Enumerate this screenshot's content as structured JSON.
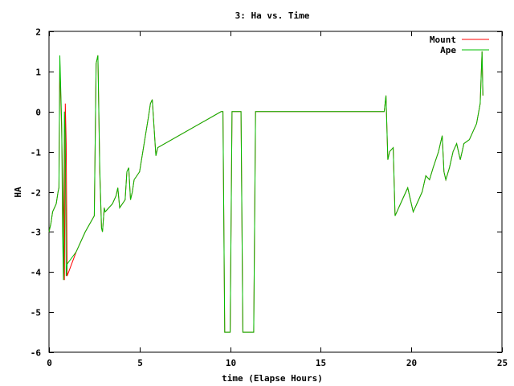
{
  "chart_data": {
    "type": "line",
    "title": "3: Ha vs. Time",
    "xlabel": "time (Elapse Hours)",
    "ylabel": "HA",
    "xlim": [
      0,
      25
    ],
    "ylim": [
      -6,
      2
    ],
    "xticks": [
      0,
      5,
      10,
      15,
      20,
      25
    ],
    "yticks": [
      -6,
      -5,
      -4,
      -3,
      -2,
      -1,
      0,
      1,
      2
    ],
    "grid": false,
    "legend_position": "top-right",
    "series": [
      {
        "name": "Mount",
        "color": "#ff0000",
        "x": [
          0.0,
          0.1,
          0.2,
          0.4,
          0.5,
          0.55,
          0.6,
          0.7,
          0.8,
          0.85,
          0.9,
          0.95,
          1.0,
          1.5,
          2.0,
          2.5,
          2.6,
          2.7,
          2.8,
          2.9,
          2.95,
          3.0,
          3.05,
          3.1,
          3.5,
          3.7,
          3.8,
          3.9,
          4.2,
          4.3,
          4.4,
          4.5,
          4.6,
          4.7,
          5.0,
          5.5,
          5.6,
          5.7,
          5.9,
          6.0,
          9.5,
          9.6,
          9.7,
          10.0,
          10.1,
          10.2,
          10.6,
          10.7,
          10.8,
          11.3,
          11.4,
          11.5,
          18.5,
          18.6,
          18.7,
          18.8,
          19.0,
          19.1,
          19.3,
          19.5,
          19.8,
          20.0,
          20.1,
          20.3,
          20.6,
          20.8,
          21.0,
          21.2,
          21.5,
          21.7,
          21.8,
          21.9,
          22.1,
          22.3,
          22.5,
          22.7,
          22.8,
          22.9,
          23.2,
          23.4,
          23.6,
          23.8,
          23.9,
          23.95
        ],
        "y": [
          -3.0,
          -2.8,
          -2.5,
          -2.3,
          -2.0,
          -1.9,
          1.2,
          -0.5,
          -3.0,
          -4.2,
          0.2,
          -0.8,
          -4.1,
          -3.5,
          -3.0,
          -2.6,
          1.2,
          1.4,
          -1.5,
          -2.9,
          -3.0,
          -2.7,
          -2.4,
          -2.5,
          -2.3,
          -2.1,
          -1.9,
          -2.4,
          -2.2,
          -1.5,
          -1.4,
          -2.2,
          -2.0,
          -1.7,
          -1.5,
          -0.1,
          0.2,
          0.3,
          -1.1,
          -0.9,
          0.0,
          0.0,
          -5.5,
          -5.5,
          0.0,
          0.0,
          0.0,
          -5.5,
          -5.5,
          -5.5,
          0.0,
          0.0,
          0.0,
          0.4,
          -1.2,
          -1.0,
          -0.9,
          -2.6,
          -2.4,
          -2.2,
          -1.9,
          -2.3,
          -2.5,
          -2.3,
          -2.0,
          -1.6,
          -1.7,
          -1.4,
          -1.0,
          -0.6,
          -1.5,
          -1.7,
          -1.4,
          -1.0,
          -0.8,
          -1.2,
          -1.0,
          -0.8,
          -0.7,
          -0.5,
          -0.3,
          0.2,
          1.5,
          0.4
        ],
        "y_note": "Mount track is visually almost entirely hidden under Ape track."
      },
      {
        "name": "Ape",
        "color": "#00bf00",
        "x": [
          0.0,
          0.1,
          0.2,
          0.4,
          0.5,
          0.55,
          0.6,
          0.7,
          0.75,
          0.8,
          0.85,
          0.9,
          0.95,
          1.0,
          1.5,
          2.0,
          2.5,
          2.6,
          2.7,
          2.8,
          2.9,
          2.95,
          3.0,
          3.05,
          3.1,
          3.5,
          3.7,
          3.8,
          3.9,
          4.2,
          4.3,
          4.4,
          4.5,
          4.6,
          4.7,
          5.0,
          5.5,
          5.6,
          5.7,
          5.9,
          6.0,
          9.5,
          9.6,
          9.7,
          10.0,
          10.1,
          10.2,
          10.6,
          10.7,
          10.8,
          11.3,
          11.4,
          11.5,
          18.5,
          18.6,
          18.7,
          18.8,
          19.0,
          19.1,
          19.3,
          19.5,
          19.8,
          20.0,
          20.1,
          20.3,
          20.6,
          20.8,
          21.0,
          21.2,
          21.5,
          21.7,
          21.8,
          21.9,
          22.1,
          22.3,
          22.5,
          22.7,
          22.8,
          22.9,
          23.2,
          23.4,
          23.6,
          23.8,
          23.9,
          23.95
        ],
        "y": [
          -3.0,
          -2.8,
          -2.5,
          -2.3,
          -2.0,
          -1.9,
          1.4,
          -0.3,
          -3.0,
          -4.2,
          0.0,
          -0.6,
          -4.1,
          -3.8,
          -3.5,
          -3.0,
          -2.6,
          1.2,
          1.4,
          -1.4,
          -2.9,
          -3.0,
          -2.7,
          -2.4,
          -2.5,
          -2.3,
          -2.1,
          -1.9,
          -2.4,
          -2.2,
          -1.5,
          -1.4,
          -2.2,
          -2.0,
          -1.7,
          -1.5,
          -0.1,
          0.2,
          0.3,
          -1.1,
          -0.9,
          0.0,
          0.0,
          -5.5,
          -5.5,
          0.0,
          0.0,
          0.0,
          -5.5,
          -5.5,
          -5.5,
          0.0,
          0.0,
          0.0,
          0.4,
          -1.2,
          -1.0,
          -0.9,
          -2.6,
          -2.4,
          -2.2,
          -1.9,
          -2.3,
          -2.5,
          -2.3,
          -2.0,
          -1.6,
          -1.7,
          -1.4,
          -1.0,
          -0.6,
          -1.5,
          -1.7,
          -1.4,
          -1.0,
          -0.8,
          -1.2,
          -1.0,
          -0.8,
          -0.7,
          -0.5,
          -0.3,
          0.2,
          1.5,
          0.4
        ]
      }
    ]
  }
}
